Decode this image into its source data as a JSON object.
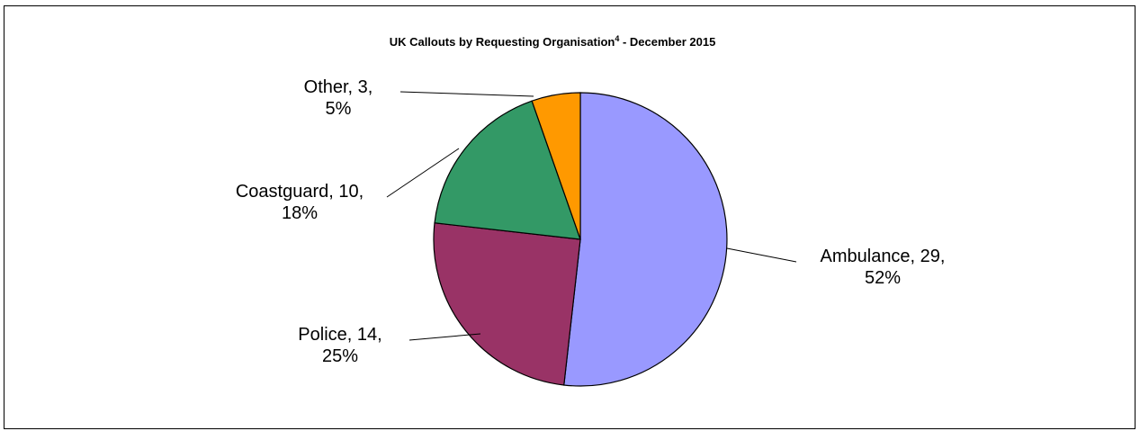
{
  "chart_data": {
    "type": "pie",
    "title": "UK Callouts by Requesting Organisation",
    "title_superscript": "4",
    "title_suffix": " - December 2015",
    "categories": [
      "Ambulance",
      "Police",
      "Coastguard",
      "Other"
    ],
    "values": [
      29,
      14,
      10,
      3
    ],
    "percent_labels": [
      "52%",
      "25%",
      "18%",
      "5%"
    ],
    "label_first_lines": [
      "Ambulance, 29,",
      "Police, 14,",
      "Coastguard, 10,",
      "Other, 3,"
    ],
    "colors": [
      "#9999FF",
      "#993366",
      "#339966",
      "#FF9900"
    ],
    "start_angle": "12 o'clock, clockwise",
    "legend": "none"
  }
}
